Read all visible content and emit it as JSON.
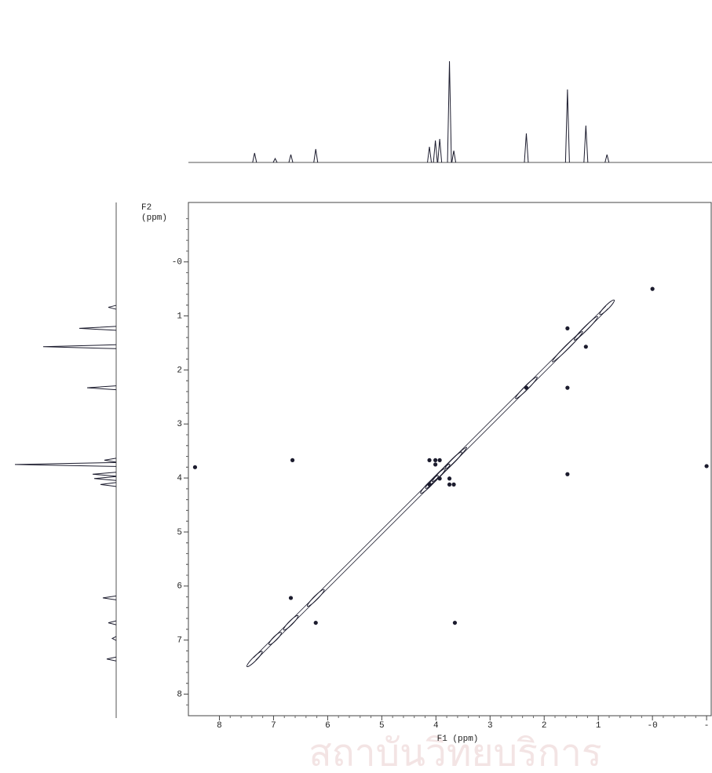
{
  "chart_data": {
    "type": "cosy",
    "xlabel": "F1 (ppm)",
    "ylabel": [
      "F2",
      "(ppm)"
    ],
    "xlim": [
      8.5,
      -1.1
    ],
    "ylim": [
      -1.1,
      8.4
    ],
    "xticks": [
      8,
      7,
      6,
      5,
      4,
      3,
      2,
      1,
      {
        "value": 0,
        "label": "-0"
      },
      {
        "value": -1,
        "label": "-"
      }
    ],
    "yticks": [
      {
        "value": 0,
        "label": "-0"
      },
      1,
      2,
      3,
      4,
      5,
      6,
      7,
      8
    ],
    "peaks": {
      "shift": [
        7.35,
        6.97,
        6.68,
        6.22,
        4.12,
        4.01,
        3.93,
        3.75,
        3.67,
        2.33,
        1.57,
        1.23,
        0.84
      ],
      "intensity": [
        12,
        5,
        10,
        17,
        20,
        28,
        30,
        129,
        15,
        37,
        93,
        47,
        10
      ]
    },
    "cross_peaks": {
      "x": [
        1.23,
        1.57,
        1.57,
        4.12,
        4.01,
        3.93,
        3.75,
        3.67,
        3.75,
        4.01,
        3.93,
        4.12,
        6.65,
        1.57,
        -1.0,
        8.45,
        6.22,
        6.68,
        3.65,
        0.0,
        2.33
      ],
      "y": [
        1.57,
        1.23,
        2.33,
        3.67,
        3.67,
        3.67,
        4.12,
        4.12,
        4.01,
        3.75,
        4.01,
        4.12,
        3.67,
        3.93,
        3.78,
        3.8,
        6.68,
        6.22,
        6.68,
        0.5,
        2.33
      ]
    },
    "color": "#1c1c2e"
  },
  "watermark": "สถาบันวิทยบริการ"
}
